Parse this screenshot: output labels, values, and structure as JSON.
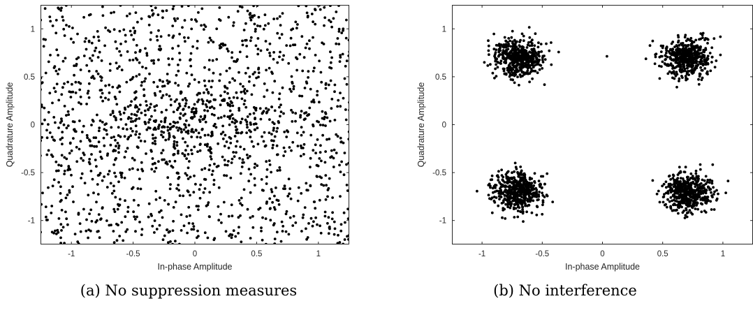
{
  "chart_data": [
    {
      "type": "scatter",
      "panel": "a",
      "caption": "(a) No suppression measures",
      "xlabel": "In-phase Amplitude",
      "ylabel": "Quadrature Amplitude",
      "xlim": [
        -1.25,
        1.25
      ],
      "ylim": [
        -1.25,
        1.25
      ],
      "xticks": [
        -1,
        -0.5,
        0,
        0.5,
        1
      ],
      "yticks": [
        -1,
        -0.5,
        0,
        0.5,
        1
      ],
      "xtick_labels": [
        "-1",
        "-0.5",
        "0",
        "0.5",
        "1"
      ],
      "ytick_labels": [
        "-1",
        "-0.5",
        "0",
        "0.5",
        "1"
      ],
      "grid": false,
      "point_color": "#000000",
      "distribution": {
        "description_of_data": "dispersed points spread over the whole plane with denser band near the center",
        "num_points": 1400,
        "uniform_range": [
          -1.3,
          1.3
        ],
        "center_cluster": {
          "center": [
            0,
            0
          ],
          "spread": 0.35,
          "num_points": 350
        }
      }
    },
    {
      "type": "scatter",
      "panel": "b",
      "caption": "(b) No interference",
      "xlabel": "In-phase Amplitude",
      "ylabel": "Quadrature Amplitude",
      "xlim": [
        -1.25,
        1.25
      ],
      "ylim": [
        -1.25,
        1.25
      ],
      "xticks": [
        -1,
        -0.5,
        0,
        0.5,
        1
      ],
      "yticks": [
        -1,
        -0.5,
        0,
        0.5,
        1
      ],
      "xtick_labels": [
        "-1",
        "-0.5",
        "0",
        "0.5",
        "1"
      ],
      "ytick_labels": [
        "-1",
        "-0.5",
        "0",
        "0.5",
        "1"
      ],
      "grid": false,
      "point_color": "#000000",
      "clusters": [
        {
          "center": [
            -0.7,
            0.7
          ],
          "spread": 0.1,
          "num_points": 500
        },
        {
          "center": [
            0.7,
            0.7
          ],
          "spread": 0.1,
          "num_points": 500
        },
        {
          "center": [
            -0.7,
            -0.7
          ],
          "spread": 0.1,
          "num_points": 500
        },
        {
          "center": [
            0.7,
            -0.7
          ],
          "spread": 0.1,
          "num_points": 500
        }
      ]
    }
  ]
}
